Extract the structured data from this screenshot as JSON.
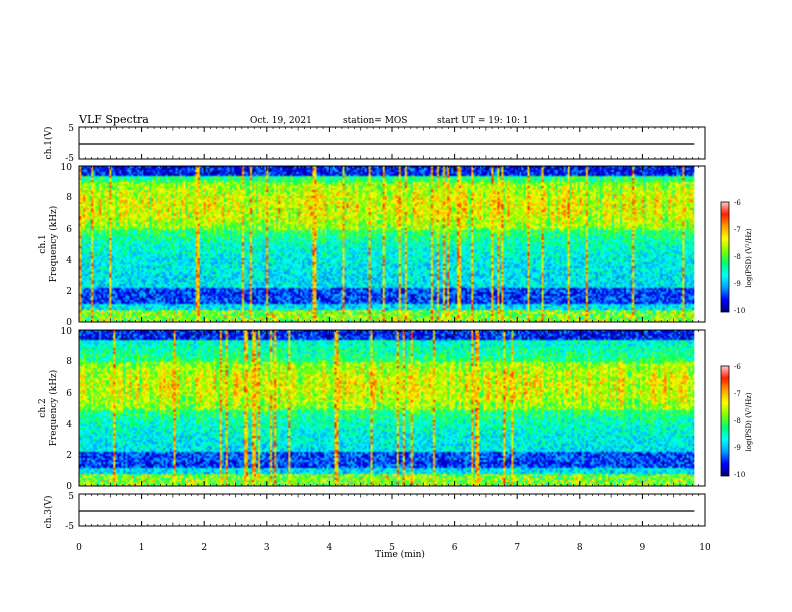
{
  "header": {
    "title": "VLF Spectra",
    "date": "Oct. 19, 2021",
    "station": "station= MOS",
    "start_ut": "start  UT =   19: 10: 1"
  },
  "chart_data": [
    {
      "type": "line",
      "panel": "ch1-waveform",
      "ylabel": "ch.1(V)",
      "yticks": [
        "5",
        "-5"
      ],
      "ylim": [
        -5,
        5
      ],
      "xlim": [
        0,
        10
      ],
      "trace_level": 0
    },
    {
      "type": "heatmap",
      "panel": "ch1-spectrogram",
      "ylabel": "ch.1\nFrequency (kHz)",
      "ylabel_line1": "ch.1",
      "ylabel_line2": "Frequency (kHz)",
      "yticks": [
        "0",
        "2",
        "4",
        "6",
        "8",
        "10"
      ],
      "ylim": [
        0,
        10
      ],
      "xlim": [
        0,
        10
      ],
      "data_end_min": 9.83,
      "dominant_band_khz": [
        6,
        9
      ],
      "colorbar": {
        "label": "log(PSD) (V²/Hz)",
        "ticks": [
          "-6",
          "-7",
          "-8",
          "-9",
          "-10"
        ],
        "range": [
          -10,
          -6
        ]
      }
    },
    {
      "type": "heatmap",
      "panel": "ch2-spectrogram",
      "ylabel_line1": "ch.2",
      "ylabel_line2": "Frequency (kHz)",
      "yticks": [
        "0",
        "2",
        "4",
        "6",
        "8",
        "10"
      ],
      "ylim": [
        0,
        10
      ],
      "xlim": [
        0,
        10
      ],
      "data_end_min": 9.83,
      "dominant_band_khz": [
        5,
        8
      ],
      "colorbar": {
        "label": "log(PSD) (V²/Hz)",
        "ticks": [
          "-6",
          "-7",
          "-8",
          "-9",
          "-10"
        ],
        "range": [
          -10,
          -6
        ]
      }
    },
    {
      "type": "line",
      "panel": "ch3-waveform",
      "ylabel": "ch.3(V)",
      "yticks": [
        "5",
        "-5"
      ],
      "ylim": [
        -5,
        5
      ],
      "xlim": [
        0,
        10
      ],
      "trace_level": 0
    }
  ],
  "xaxis": {
    "label": "Time  (min)",
    "ticks": [
      "0",
      "1",
      "2",
      "3",
      "4",
      "5",
      "6",
      "7",
      "8",
      "9",
      "10"
    ],
    "range": [
      0,
      10
    ]
  },
  "colormap": [
    "#00007a",
    "#0000ff",
    "#00a0ff",
    "#00ffff",
    "#00ff70",
    "#7fff00",
    "#ffff00",
    "#ffa000",
    "#ff2000",
    "#ffc8c8"
  ]
}
